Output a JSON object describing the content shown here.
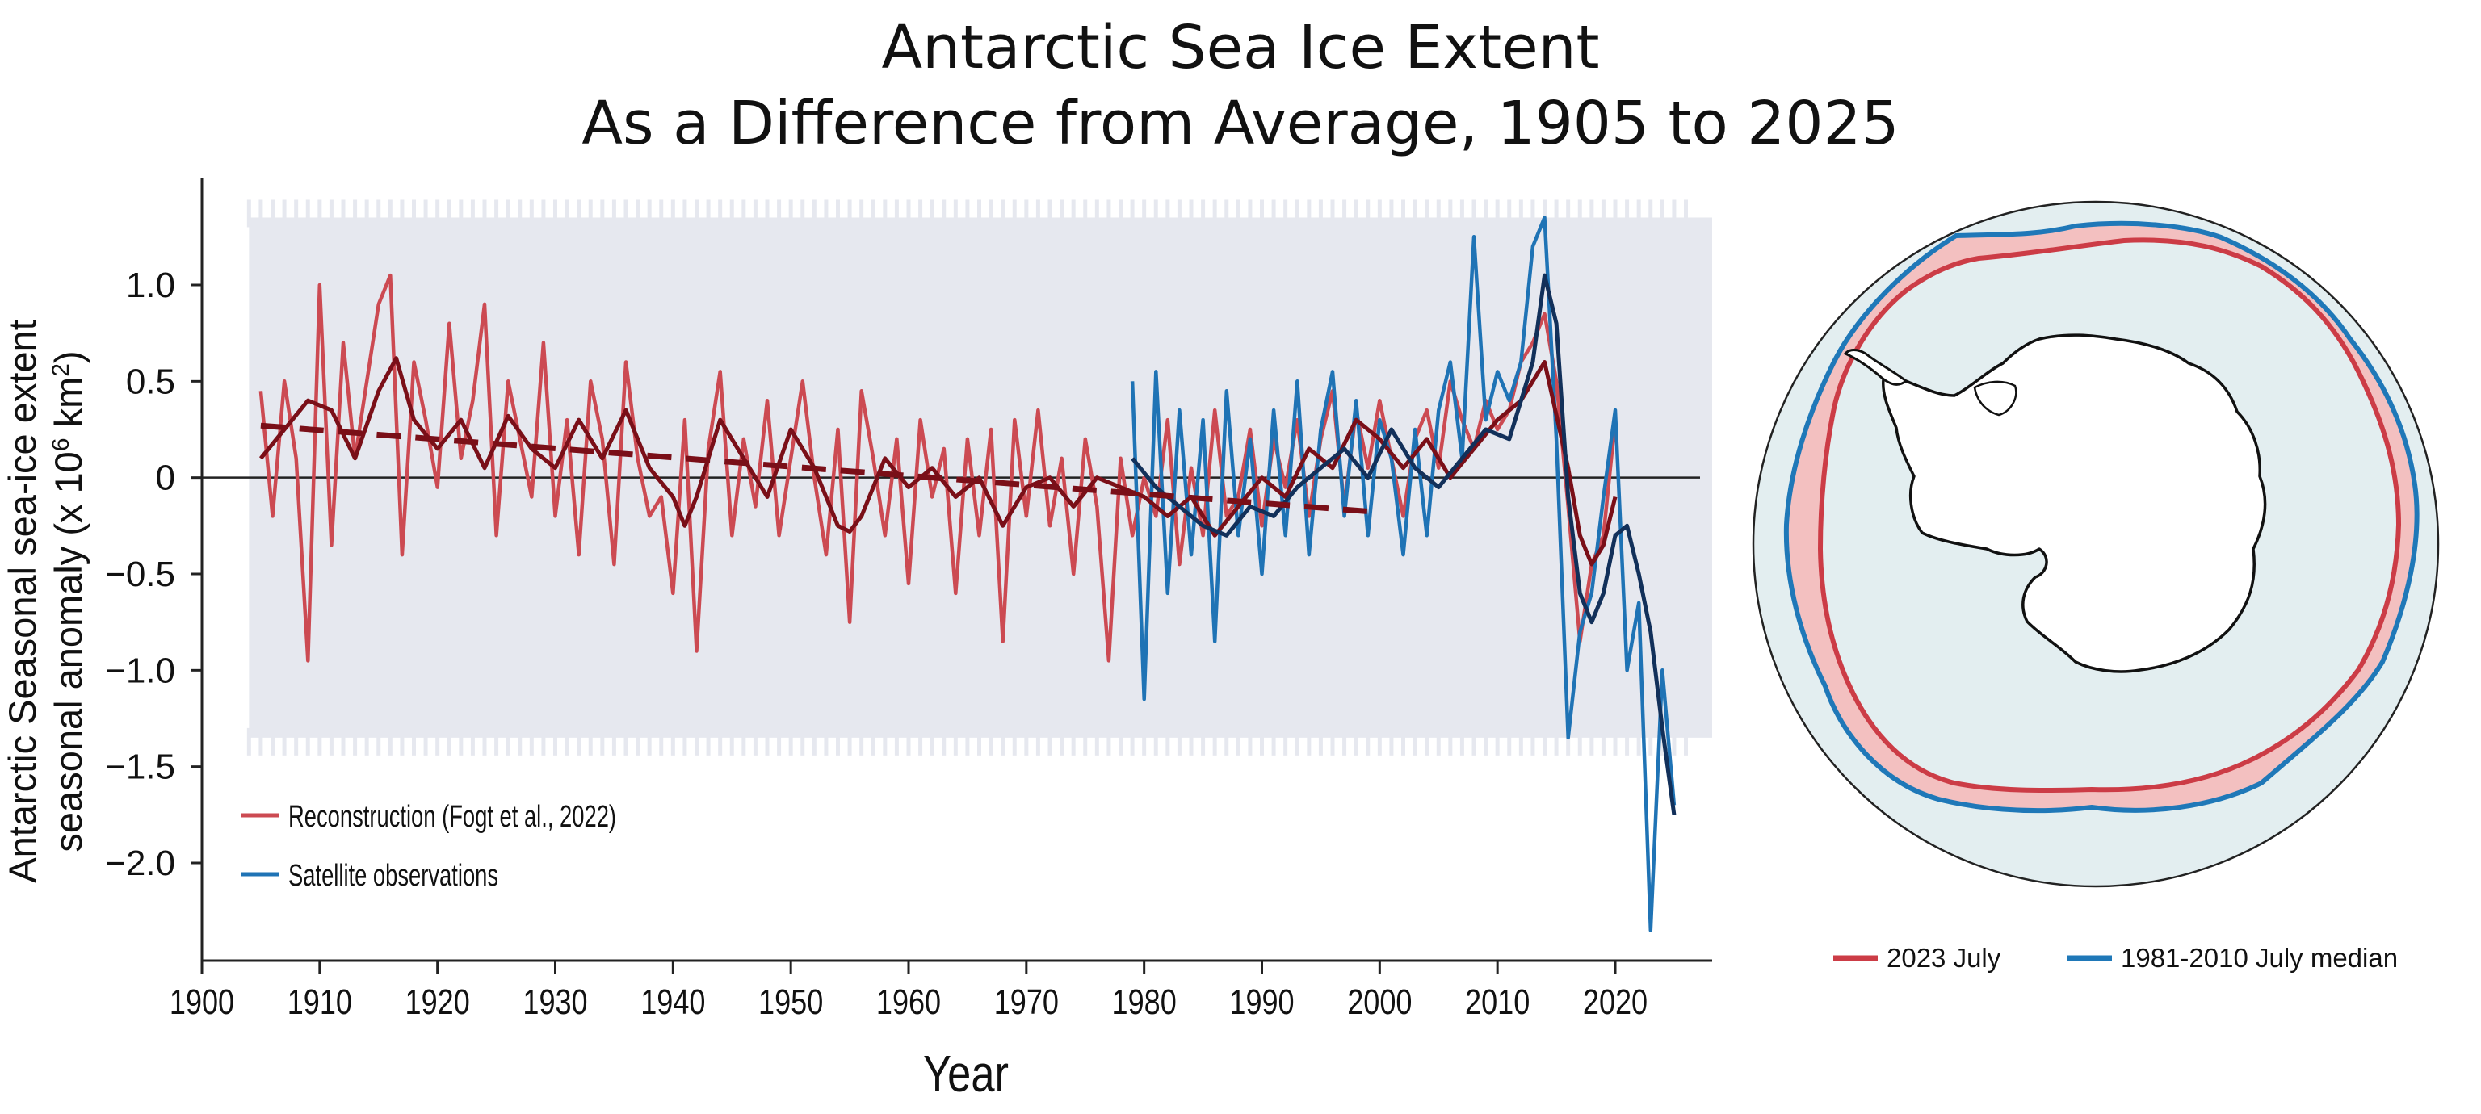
{
  "title": {
    "line1": "Antarctic Sea Ice Extent",
    "line2": "As a Difference from Average, 1905 to 2025"
  },
  "colors": {
    "reconstruction": "#cc4a52",
    "reconstruction_smooth": "#7a0f18",
    "satellite": "#1f73b5",
    "satellite_smooth": "#12305a",
    "band": "#e6e8ef",
    "map_ocean": "#e3eef0",
    "map_2023": "#cc3c46",
    "map_2023_fill": "#f3c0c0",
    "map_median": "#1f78b8",
    "map_median_fill": "#b9c7d3"
  },
  "chart_data": [
    {
      "type": "line",
      "xlabel": "Year",
      "ylabel_line1": "Antarctic Seasonal sea-ice extent",
      "ylabel_line2": "seasonal anomaly (x 10",
      "ylabel_sup": "6",
      "ylabel_tail": " km",
      "ylabel_sup2": "2",
      "ylabel_end": ")",
      "xlim": [
        1900,
        2028
      ],
      "ylim": [
        -2.5,
        1.5
      ],
      "x_ticks": [
        1900,
        1910,
        1920,
        1930,
        1940,
        1950,
        1960,
        1970,
        1980,
        1990,
        2000,
        2010,
        2020
      ],
      "y_ticks": [
        {
          "value": 1.0,
          "label": "1.0"
        },
        {
          "value": 0.5,
          "label": "0.5"
        },
        {
          "value": 0,
          "label": "0"
        },
        {
          "value": -0.5,
          "label": "−0.5"
        },
        {
          "value": -1.0,
          "label": "−1.0"
        },
        {
          "value": -1.5,
          "label": "−1.5"
        },
        {
          "value": -2.0,
          "label": "−2.0"
        }
      ],
      "uncertainty_band": {
        "x": [
          1904,
          2028
        ],
        "y": [
          -1.35,
          1.35
        ]
      },
      "series": [
        {
          "name": "Reconstruction (Fogt et al., 2022)",
          "style": "raw",
          "color_key": "reconstruction",
          "x": [
            1905,
            1906,
            1907,
            1908,
            1909,
            1910,
            1911,
            1912,
            1913,
            1914,
            1915,
            1916,
            1917,
            1918,
            1919,
            1920,
            1921,
            1922,
            1923,
            1924,
            1925,
            1926,
            1927,
            1928,
            1929,
            1930,
            1931,
            1932,
            1933,
            1934,
            1935,
            1936,
            1937,
            1938,
            1939,
            1940,
            1941,
            1942,
            1943,
            1944,
            1945,
            1946,
            1947,
            1948,
            1949,
            1950,
            1951,
            1952,
            1953,
            1954,
            1955,
            1956,
            1957,
            1958,
            1959,
            1960,
            1961,
            1962,
            1963,
            1964,
            1965,
            1966,
            1967,
            1968,
            1969,
            1970,
            1971,
            1972,
            1973,
            1974,
            1975,
            1976,
            1977,
            1978,
            1979,
            1980,
            1981,
            1982,
            1983,
            1984,
            1985,
            1986,
            1987,
            1988,
            1989,
            1990,
            1991,
            1992,
            1993,
            1994,
            1995,
            1996,
            1997,
            1998,
            1999,
            2000,
            2001,
            2002,
            2003,
            2004,
            2005,
            2006,
            2007,
            2008,
            2009,
            2010,
            2011,
            2012,
            2013,
            2014,
            2015,
            2016,
            2017,
            2018,
            2019,
            2020
          ],
          "y": [
            0.45,
            -0.2,
            0.5,
            0.1,
            -0.95,
            1.0,
            -0.35,
            0.7,
            0.1,
            0.5,
            0.9,
            1.05,
            -0.4,
            0.6,
            0.3,
            -0.05,
            0.8,
            0.1,
            0.4,
            0.9,
            -0.3,
            0.5,
            0.2,
            -0.1,
            0.7,
            -0.2,
            0.3,
            -0.4,
            0.5,
            0.2,
            -0.45,
            0.6,
            0.1,
            -0.2,
            -0.1,
            -0.6,
            0.3,
            -0.9,
            0.15,
            0.55,
            -0.3,
            0.2,
            -0.15,
            0.4,
            -0.3,
            0.1,
            0.5,
            0.0,
            -0.4,
            0.25,
            -0.75,
            0.45,
            0.1,
            -0.3,
            0.2,
            -0.55,
            0.3,
            -0.1,
            0.15,
            -0.6,
            0.2,
            -0.3,
            0.25,
            -0.85,
            0.3,
            -0.2,
            0.35,
            -0.25,
            0.1,
            -0.5,
            0.2,
            -0.15,
            -0.95,
            0.1,
            -0.3,
            0.0,
            -0.2,
            0.3,
            -0.45,
            0.05,
            -0.3,
            0.35,
            -0.2,
            -0.1,
            0.25,
            -0.25,
            0.2,
            -0.05,
            0.3,
            -0.2,
            0.2,
            0.45,
            -0.15,
            0.35,
            0.05,
            0.4,
            0.1,
            -0.2,
            0.2,
            0.35,
            0.05,
            0.5,
            0.3,
            0.15,
            0.4,
            0.25,
            0.35,
            0.6,
            0.7,
            0.85,
            0.5,
            -0.15,
            -0.85,
            -0.45,
            -0.3,
            0.3
          ]
        },
        {
          "name": "Satellite observations",
          "style": "raw",
          "color_key": "satellite",
          "x": [
            1979,
            1980,
            1981,
            1982,
            1983,
            1984,
            1985,
            1986,
            1987,
            1988,
            1989,
            1990,
            1991,
            1992,
            1993,
            1994,
            1995,
            1996,
            1997,
            1998,
            1999,
            2000,
            2001,
            2002,
            2003,
            2004,
            2005,
            2006,
            2007,
            2008,
            2009,
            2010,
            2011,
            2012,
            2013,
            2014,
            2015,
            2016,
            2017,
            2018,
            2019,
            2020,
            2021,
            2022,
            2023,
            2024,
            2025
          ],
          "y": [
            0.5,
            -1.15,
            0.55,
            -0.6,
            0.35,
            -0.4,
            0.3,
            -0.85,
            0.45,
            -0.3,
            0.2,
            -0.5,
            0.35,
            -0.3,
            0.5,
            -0.4,
            0.25,
            0.55,
            -0.2,
            0.4,
            -0.3,
            0.3,
            0.1,
            -0.4,
            0.25,
            -0.3,
            0.35,
            0.6,
            0.1,
            1.25,
            0.3,
            0.55,
            0.4,
            0.6,
            1.2,
            1.35,
            0.2,
            -1.35,
            -0.8,
            -0.6,
            -0.1,
            0.35,
            -1.0,
            -0.65,
            -2.35,
            -1.0,
            -1.7
          ]
        },
        {
          "name": "",
          "style": "smooth",
          "color_key": "reconstruction_smooth",
          "x": [
            1905,
            1907,
            1909,
            1911,
            1913,
            1915,
            1916.5,
            1918,
            1920,
            1922,
            1924,
            1926,
            1928,
            1930,
            1932,
            1934,
            1936,
            1938,
            1940,
            1941,
            1942,
            1944,
            1946,
            1948,
            1950,
            1952,
            1954,
            1955,
            1956,
            1958,
            1960,
            1962,
            1964,
            1966,
            1968,
            1970,
            1972,
            1974,
            1976,
            1978,
            1980,
            1982,
            1984,
            1986,
            1988,
            1990,
            1992,
            1994,
            1996,
            1998,
            2000,
            2002,
            2004,
            2006,
            2008,
            2010,
            2012,
            2014,
            2016,
            2017,
            2018,
            2019,
            2020
          ],
          "y": [
            0.1,
            0.25,
            0.4,
            0.35,
            0.1,
            0.45,
            0.62,
            0.3,
            0.15,
            0.3,
            0.05,
            0.32,
            0.15,
            0.05,
            0.3,
            0.1,
            0.35,
            0.05,
            -0.1,
            -0.25,
            -0.1,
            0.3,
            0.1,
            -0.1,
            0.25,
            0.05,
            -0.25,
            -0.28,
            -0.2,
            0.1,
            -0.05,
            0.05,
            -0.1,
            0.0,
            -0.25,
            -0.05,
            0.0,
            -0.15,
            0.0,
            -0.05,
            -0.1,
            -0.2,
            -0.1,
            -0.3,
            -0.15,
            0.0,
            -0.1,
            0.15,
            0.05,
            0.3,
            0.2,
            0.05,
            0.2,
            0.0,
            0.15,
            0.3,
            0.4,
            0.6,
            0.05,
            -0.3,
            -0.45,
            -0.35,
            -0.1
          ]
        },
        {
          "name": "",
          "style": "smooth",
          "color_key": "satellite_smooth",
          "x": [
            1979,
            1981,
            1983,
            1985,
            1987,
            1989,
            1991,
            1993,
            1995,
            1997,
            1999,
            2001,
            2003,
            2005,
            2007,
            2009,
            2011,
            2013,
            2014,
            2015,
            2016,
            2017,
            2018,
            2019,
            2020,
            2021,
            2022,
            2023,
            2024,
            2025
          ],
          "y": [
            0.1,
            -0.05,
            -0.15,
            -0.25,
            -0.3,
            -0.15,
            -0.2,
            -0.05,
            0.05,
            0.15,
            0.0,
            0.25,
            0.05,
            -0.05,
            0.1,
            0.25,
            0.2,
            0.6,
            1.05,
            0.8,
            -0.1,
            -0.6,
            -0.75,
            -0.6,
            -0.3,
            -0.25,
            -0.5,
            -0.8,
            -1.3,
            -1.75
          ]
        },
        {
          "name": "",
          "style": "trend",
          "color_key": "reconstruction_smooth",
          "x": [
            1905,
            2000
          ],
          "y": [
            0.27,
            -0.18
          ]
        }
      ],
      "legend": {
        "placement": "bottom-left",
        "items": [
          {
            "label": "Reconstruction (Fogt et al., 2022)",
            "color_key": "reconstruction"
          },
          {
            "label": "Satellite observations",
            "color_key": "satellite"
          }
        ]
      }
    }
  ],
  "map": {
    "legend": [
      {
        "label": "2023 July",
        "color_key": "map_2023"
      },
      {
        "label": "1981-2010 July median",
        "color_key": "map_median"
      }
    ]
  }
}
